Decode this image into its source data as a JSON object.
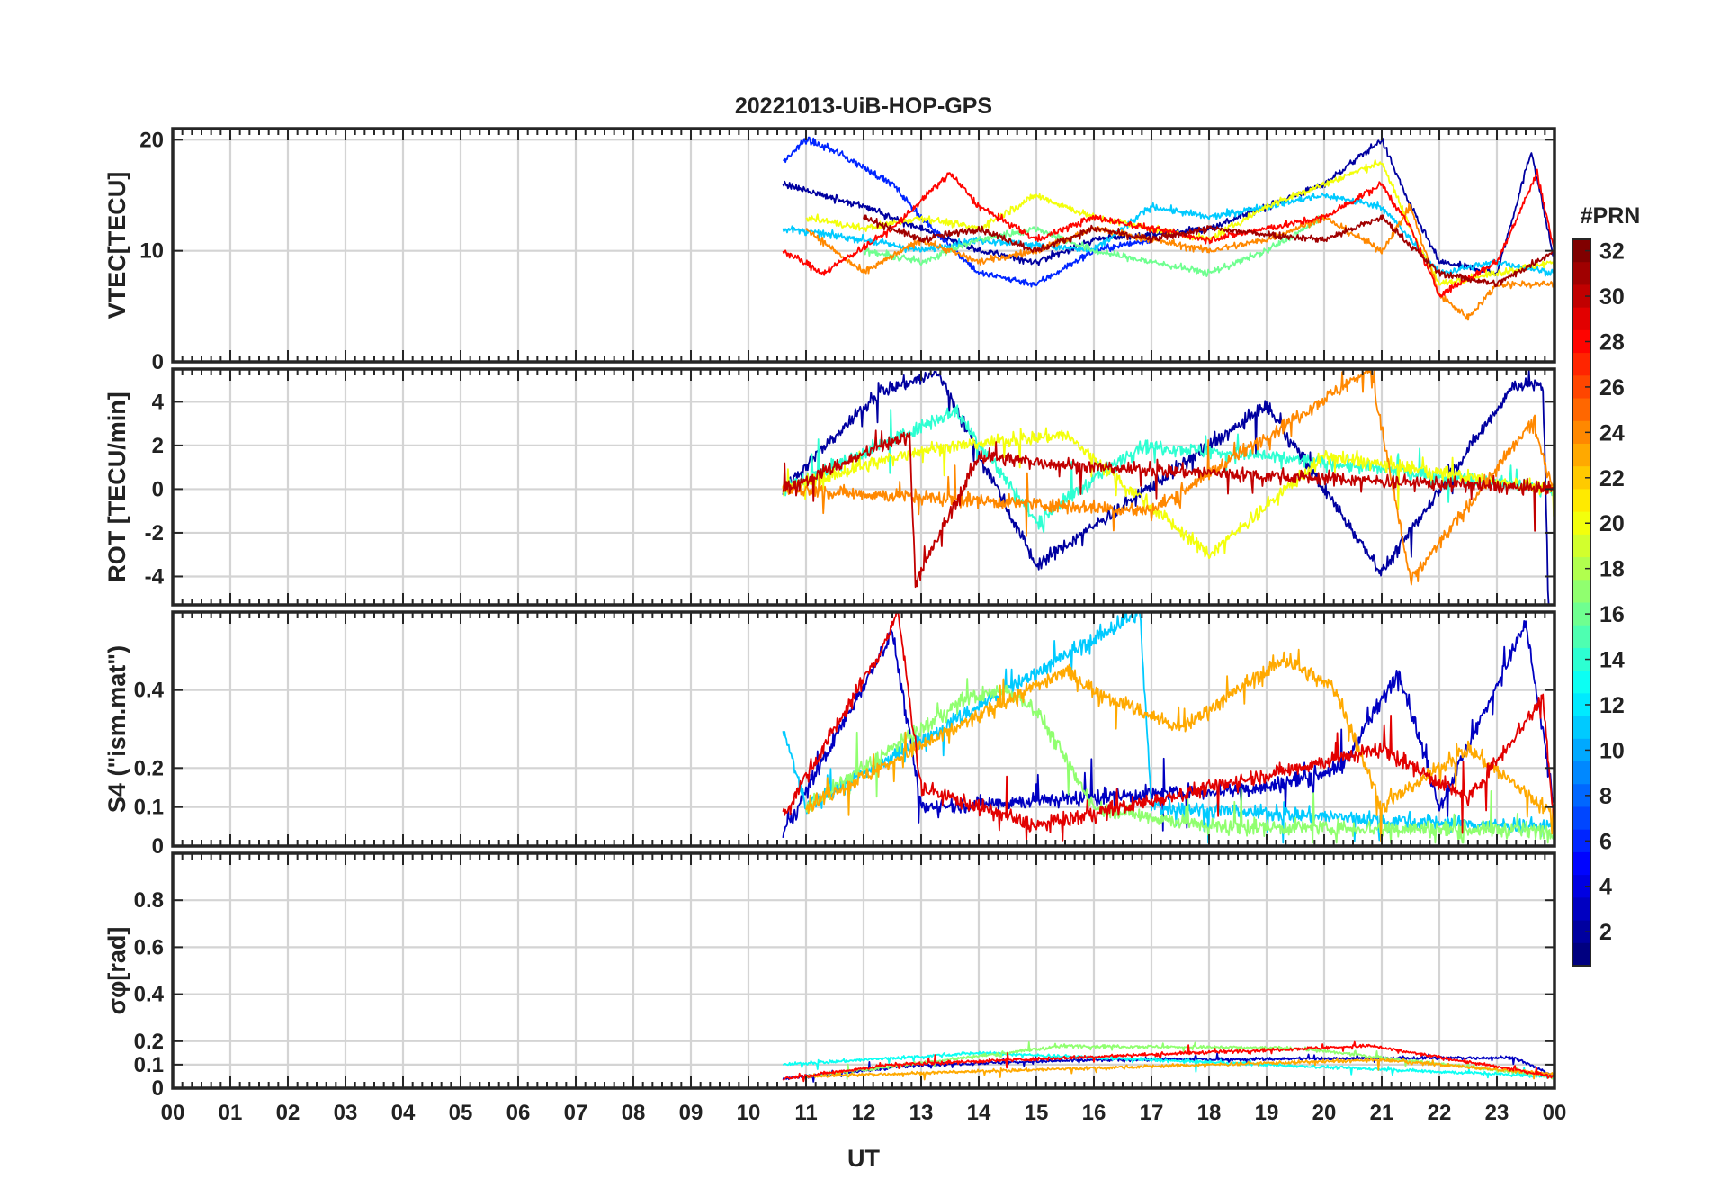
{
  "figure": {
    "title": "20221013-UiB-HOP-GPS",
    "xlabel": "UT",
    "x_ticks": [
      "00",
      "01",
      "02",
      "03",
      "04",
      "05",
      "06",
      "07",
      "08",
      "09",
      "10",
      "11",
      "12",
      "13",
      "14",
      "15",
      "16",
      "17",
      "18",
      "19",
      "20",
      "21",
      "22",
      "23",
      "00"
    ],
    "colorbar": {
      "label": "#PRN",
      "colormap": "jet",
      "range": [
        1,
        32
      ],
      "ticks": [
        "2",
        "4",
        "6",
        "8",
        "10",
        "12",
        "14",
        "16",
        "18",
        "20",
        "22",
        "24",
        "26",
        "28",
        "30",
        "32"
      ],
      "tick_values": [
        2,
        4,
        6,
        8,
        10,
        12,
        14,
        16,
        18,
        20,
        22,
        24,
        26,
        28,
        30,
        32
      ]
    }
  },
  "chart_data": [
    {
      "type": "line",
      "panel": "vtec",
      "ylabel": "VTEC[TECU]",
      "xlim": [
        0,
        24
      ],
      "ylim": [
        0,
        21
      ],
      "y_ticks": [
        0,
        10,
        20
      ],
      "y_tick_labels": [
        "0",
        "10",
        "20"
      ],
      "data_start_hour": 10.6,
      "series": [
        {
          "prn": 2,
          "values": [
            [
              10.6,
              16
            ],
            [
              12,
              14
            ],
            [
              13,
              12
            ],
            [
              14,
              10
            ],
            [
              15,
              9
            ],
            [
              16,
              11
            ],
            [
              18,
              12
            ],
            [
              19,
              14
            ],
            [
              20,
              16
            ],
            [
              21,
              20
            ],
            [
              21.5,
              14
            ],
            [
              22,
              9
            ],
            [
              23,
              8
            ],
            [
              23.6,
              19
            ],
            [
              24,
              9
            ]
          ]
        },
        {
          "prn": 6,
          "values": [
            [
              10.6,
              18
            ],
            [
              11,
              20
            ],
            [
              11.5,
              19
            ],
            [
              12.5,
              16
            ],
            [
              13,
              13
            ],
            [
              14,
              8
            ],
            [
              15,
              7
            ],
            [
              16,
              10
            ],
            [
              17,
              11
            ]
          ]
        },
        {
          "prn": 11,
          "values": [
            [
              10.6,
              12
            ],
            [
              12,
              11
            ],
            [
              13,
              10
            ],
            [
              14,
              11
            ],
            [
              16,
              10
            ],
            [
              17,
              14
            ],
            [
              18,
              13
            ],
            [
              20,
              15
            ],
            [
              21,
              14
            ],
            [
              22,
              8
            ],
            [
              23,
              9
            ],
            [
              24,
              8
            ]
          ]
        },
        {
          "prn": 16,
          "values": [
            [
              12,
              10
            ],
            [
              13,
              9
            ],
            [
              14,
              11
            ],
            [
              15,
              12
            ],
            [
              16,
              10
            ],
            [
              17,
              9
            ],
            [
              18,
              8
            ],
            [
              19,
              10
            ],
            [
              20,
              13
            ]
          ]
        },
        {
          "prn": 20,
          "values": [
            [
              11,
              13
            ],
            [
              12,
              12
            ],
            [
              13,
              13
            ],
            [
              14,
              12
            ],
            [
              15,
              15
            ],
            [
              16,
              13
            ],
            [
              18,
              11
            ],
            [
              19,
              14
            ],
            [
              20,
              16
            ],
            [
              21,
              18
            ],
            [
              21.5,
              12
            ],
            [
              22,
              7
            ],
            [
              23,
              8
            ],
            [
              24,
              9
            ]
          ]
        },
        {
          "prn": 24,
          "values": [
            [
              11,
              12
            ],
            [
              12,
              8
            ],
            [
              13,
              11
            ],
            [
              14,
              9
            ],
            [
              15,
              10
            ],
            [
              16,
              12
            ],
            [
              18,
              10
            ],
            [
              19,
              11
            ],
            [
              20,
              13
            ],
            [
              21,
              10
            ],
            [
              21.5,
              14
            ],
            [
              22,
              6
            ],
            [
              22.5,
              4
            ],
            [
              23,
              7
            ],
            [
              24,
              7
            ]
          ]
        },
        {
          "prn": 28,
          "values": [
            [
              10.6,
              10
            ],
            [
              11.3,
              8
            ],
            [
              12.5,
              12
            ],
            [
              13.5,
              17
            ],
            [
              14,
              14
            ],
            [
              15,
              11
            ],
            [
              16,
              13
            ],
            [
              17,
              12
            ],
            [
              18,
              11
            ],
            [
              20,
              13
            ],
            [
              21,
              16
            ],
            [
              21.5,
              12
            ],
            [
              22,
              6
            ],
            [
              23,
              9
            ],
            [
              23.7,
              17
            ],
            [
              24,
              10
            ]
          ]
        },
        {
          "prn": 31,
          "values": [
            [
              12,
              13
            ],
            [
              13,
              11
            ],
            [
              14,
              12
            ],
            [
              15,
              10
            ],
            [
              16,
              12
            ],
            [
              17,
              11
            ],
            [
              18,
              12
            ],
            [
              20,
              11
            ],
            [
              21,
              13
            ],
            [
              22,
              8
            ],
            [
              23,
              7
            ],
            [
              24,
              10
            ]
          ]
        }
      ]
    },
    {
      "type": "line",
      "panel": "rot",
      "ylabel": "ROT [TECU/min]",
      "xlim": [
        0,
        24
      ],
      "ylim": [
        -5.3,
        5.5
      ],
      "y_ticks": [
        -4,
        -2,
        0,
        2,
        4
      ],
      "y_tick_labels": [
        "-4",
        "-2",
        "0",
        "2",
        "4"
      ],
      "data_start_hour": 10.6,
      "series": [
        {
          "prn": 2,
          "values": [
            [
              10.6,
              0
            ],
            [
              12.3,
              4.5
            ],
            [
              13.3,
              5.3
            ],
            [
              15,
              -3.5
            ],
            [
              19,
              3.8
            ],
            [
              21,
              -3.8
            ],
            [
              23.3,
              4.8
            ],
            [
              23.8,
              4.7
            ],
            [
              23.9,
              -5.3
            ]
          ]
        },
        {
          "prn": 14,
          "values": [
            [
              10.6,
              0
            ],
            [
              13.6,
              3.6
            ],
            [
              15,
              -1.5
            ],
            [
              16.8,
              2
            ],
            [
              19,
              1.5
            ],
            [
              24,
              0
            ]
          ]
        },
        {
          "prn": 20,
          "values": [
            [
              10.6,
              0
            ],
            [
              13,
              1.8
            ],
            [
              15.5,
              2.5
            ],
            [
              18,
              -3
            ],
            [
              20,
              1.5
            ],
            [
              24,
              0
            ]
          ]
        },
        {
          "prn": 24,
          "values": [
            [
              10.6,
              0
            ],
            [
              17,
              -1
            ],
            [
              20.8,
              5.5
            ],
            [
              21.5,
              -4.2
            ],
            [
              23.6,
              3
            ],
            [
              24,
              0
            ]
          ]
        },
        {
          "prn": 30,
          "values": [
            [
              10.6,
              0
            ],
            [
              12.8,
              2.5
            ],
            [
              12.9,
              -4.3
            ],
            [
              14,
              1.5
            ],
            [
              16,
              1
            ],
            [
              24,
              0
            ]
          ]
        }
      ]
    },
    {
      "type": "line",
      "panel": "s4",
      "ylabel": "S4 (\"ism.mat\")",
      "xlim": [
        0,
        24
      ],
      "ylim": [
        0,
        0.6
      ],
      "y_ticks": [
        0,
        0.1,
        0.2,
        0.4
      ],
      "y_tick_labels": [
        "0",
        "0.1",
        "0.2",
        "0.4"
      ],
      "data_start_hour": 10.6,
      "series": [
        {
          "prn": 3,
          "values": [
            [
              10.6,
              0.03
            ],
            [
              12.5,
              0.55
            ],
            [
              13,
              0.1
            ],
            [
              19,
              0.15
            ],
            [
              20.3,
              0.2
            ],
            [
              21.3,
              0.45
            ],
            [
              22,
              0.1
            ],
            [
              23.5,
              0.57
            ],
            [
              24,
              0.1
            ]
          ]
        },
        {
          "prn": 11,
          "values": [
            [
              10.6,
              0.3
            ],
            [
              11,
              0.1
            ],
            [
              16.8,
              0.6
            ],
            [
              17,
              0.1
            ],
            [
              22,
              0.06
            ],
            [
              24,
              0.05
            ]
          ]
        },
        {
          "prn": 17,
          "values": [
            [
              11,
              0.1
            ],
            [
              13.8,
              0.38
            ],
            [
              14.5,
              0.4
            ],
            [
              15,
              0.35
            ],
            [
              16,
              0.1
            ],
            [
              18,
              0.05
            ],
            [
              24,
              0.04
            ]
          ]
        },
        {
          "prn": 23,
          "values": [
            [
              11,
              0.1
            ],
            [
              15.5,
              0.45
            ],
            [
              16,
              0.4
            ],
            [
              17.5,
              0.3
            ],
            [
              19.3,
              0.48
            ],
            [
              20.2,
              0.4
            ],
            [
              21,
              0.1
            ],
            [
              22.5,
              0.25
            ],
            [
              24,
              0.08
            ]
          ]
        },
        {
          "prn": 29,
          "values": [
            [
              10.6,
              0.08
            ],
            [
              12.3,
              0.5
            ],
            [
              12.6,
              0.6
            ],
            [
              13,
              0.15
            ],
            [
              15,
              0.05
            ],
            [
              21,
              0.25
            ],
            [
              22.5,
              0.12
            ],
            [
              23.8,
              0.38
            ],
            [
              24,
              0.05
            ]
          ]
        }
      ]
    },
    {
      "type": "line",
      "panel": "sigma_phi",
      "ylabel": "σφ[rad]",
      "xlim": [
        0,
        24
      ],
      "ylim": [
        0,
        1
      ],
      "y_ticks": [
        0,
        0.1,
        0.2,
        0.4,
        0.6,
        0.8
      ],
      "y_tick_labels": [
        "0",
        "0.1",
        "0.2",
        "0.4",
        "0.6",
        "0.8"
      ],
      "data_start_hour": 10.6,
      "series": [
        {
          "prn": 3,
          "values": [
            [
              10.6,
              0.04
            ],
            [
              13,
              0.1
            ],
            [
              16,
              0.12
            ],
            [
              23.3,
              0.13
            ],
            [
              24,
              0.05
            ]
          ]
        },
        {
          "prn": 13,
          "values": [
            [
              10.6,
              0.1
            ],
            [
              14,
              0.15
            ],
            [
              17,
              0.12
            ],
            [
              24,
              0.05
            ]
          ]
        },
        {
          "prn": 17,
          "values": [
            [
              11,
              0.05
            ],
            [
              15.5,
              0.18
            ],
            [
              19.5,
              0.17
            ],
            [
              24,
              0.05
            ]
          ]
        },
        {
          "prn": 23,
          "values": [
            [
              11,
              0.05
            ],
            [
              18,
              0.1
            ],
            [
              21,
              0.12
            ],
            [
              24,
              0.06
            ]
          ]
        },
        {
          "prn": 28,
          "values": [
            [
              10.6,
              0.04
            ],
            [
              12.5,
              0.1
            ],
            [
              20.8,
              0.18
            ],
            [
              24,
              0.05
            ]
          ]
        }
      ]
    }
  ]
}
